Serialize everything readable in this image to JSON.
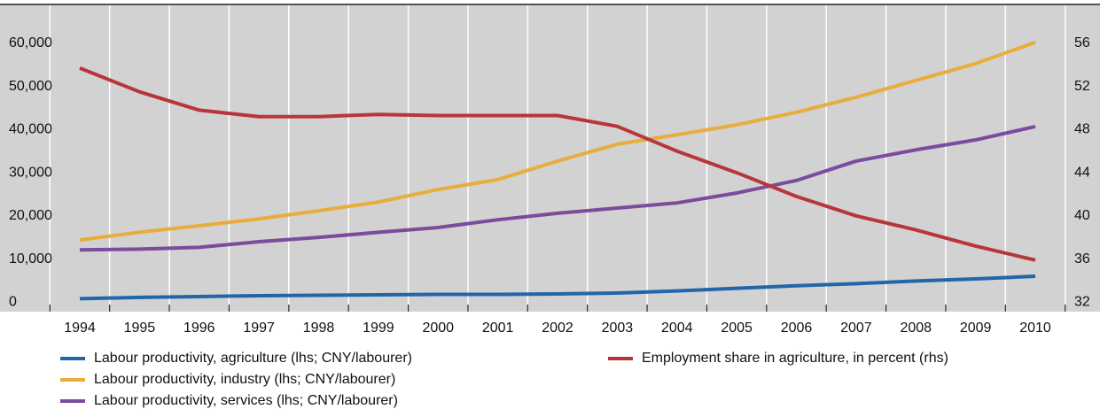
{
  "chart_data": {
    "type": "line",
    "categories": [
      "1994",
      "1995",
      "1996",
      "1997",
      "1998",
      "1999",
      "2000",
      "2001",
      "2002",
      "2003",
      "2004",
      "2005",
      "2006",
      "2007",
      "2008",
      "2009",
      "2010"
    ],
    "series": [
      {
        "name": "Labour productivity, agriculture (lhs; CNY/labourer)",
        "color": "#2166a8",
        "values": [
          800,
          1100,
          1300,
          1500,
          1600,
          1700,
          1800,
          1800,
          1900,
          2100,
          2600,
          3200,
          3800,
          4300,
          4900,
          5400,
          6000
        ]
      },
      {
        "name": "Labour productivity, industry (lhs; CNY/labourer)",
        "color": "#e8ad3c",
        "values": [
          14400,
          16200,
          17700,
          19300,
          21200,
          23200,
          26100,
          28400,
          32700,
          36600,
          38800,
          41100,
          44000,
          47500,
          51400,
          55300,
          60200
        ]
      },
      {
        "name": "Labour productivity, services (lhs; CNY/labourer)",
        "color": "#7b4b9e",
        "values": [
          12100,
          12300,
          12700,
          14000,
          15000,
          16200,
          17300,
          19100,
          20600,
          21800,
          23000,
          25300,
          28200,
          32700,
          35300,
          37600,
          40700
        ]
      },
      {
        "name": "Employment share in agriculture, in percent (rhs)",
        "color": "#b8363b",
        "axis": "y2",
        "values": [
          53.7,
          51.5,
          49.8,
          49.2,
          49.2,
          49.4,
          49.3,
          49.3,
          49.3,
          48.3,
          46.0,
          44.0,
          41.8,
          40.0,
          38.7,
          37.2,
          35.9
        ]
      }
    ],
    "ylim": [
      -2200,
      69000
    ],
    "yticks": [
      0,
      {
        "value": 10000,
        "label": "10,000"
      },
      {
        "value": 20000,
        "label": "20,000"
      },
      {
        "value": 30000,
        "label": "30,000"
      },
      {
        "value": 40000,
        "label": "40,000"
      },
      {
        "value": 50000,
        "label": "50,000"
      },
      {
        "value": 60000,
        "label": "60,000"
      }
    ],
    "y2lim": [
      31.12,
      59.6
    ],
    "y2ticks": [
      32,
      36,
      40,
      44,
      48,
      52,
      56
    ]
  }
}
